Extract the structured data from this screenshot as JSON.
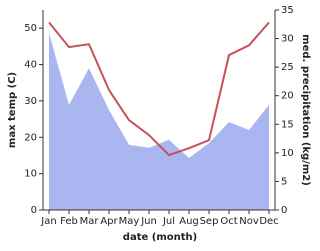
{
  "chart_data": {
    "type": "line_area",
    "categories": [
      "Jan",
      "Feb",
      "Mar",
      "Apr",
      "May",
      "Jun",
      "Jul",
      "Aug",
      "Sep",
      "Oct",
      "Nov",
      "Dec"
    ],
    "x_label": "date (month)",
    "y_label": "max temp (C)",
    "y2_label": "med. precipitation (kg/m2)",
    "ylim": [
      0,
      55
    ],
    "yticks": [
      0,
      10,
      20,
      30,
      40,
      50
    ],
    "y2lim": [
      0,
      35
    ],
    "y2ticks": [
      0,
      5,
      10,
      15,
      20,
      25,
      30,
      35
    ],
    "series": [
      {
        "name": "max temp",
        "color": "#c8505a",
        "values": [
          51.6,
          44.8,
          45.6,
          33,
          24.7,
          20.6,
          15.1,
          17,
          19.2,
          42.6,
          45.3,
          51.6
        ]
      },
      {
        "name": "med. precipitation",
        "color": "#aab6f0",
        "axis": "y2",
        "values": [
          31,
          18.4,
          24.8,
          17.5,
          11.4,
          10.9,
          12.3,
          9.1,
          11.7,
          15.4,
          14,
          18.4
        ]
      }
    ]
  }
}
